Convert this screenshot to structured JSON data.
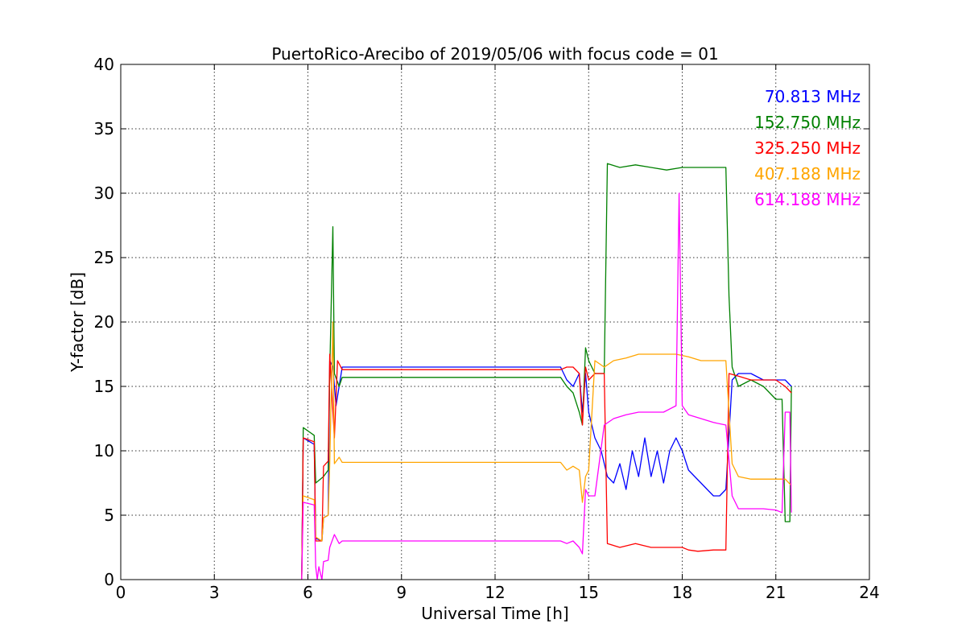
{
  "chart_data": {
    "type": "line",
    "title": "PuertoRico-Arecibo of 2019/05/06 with focus code = 01",
    "xlabel": "Universal Time [h]",
    "ylabel": "Y-factor [dB]",
    "xlim": [
      0,
      24
    ],
    "ylim": [
      0,
      40
    ],
    "xticks": [
      0,
      3,
      6,
      9,
      12,
      15,
      18,
      21,
      24
    ],
    "yticks": [
      0,
      5,
      10,
      15,
      20,
      25,
      30,
      35,
      40
    ],
    "grid": true,
    "legend_position": "top-right",
    "series": [
      {
        "name": "70.813 MHz",
        "color": "#0000ff",
        "points": [
          [
            5.8,
            0
          ],
          [
            5.85,
            11
          ],
          [
            6.2,
            10.5
          ],
          [
            6.25,
            3.2
          ],
          [
            6.45,
            3
          ],
          [
            6.5,
            4.8
          ],
          [
            6.65,
            5
          ],
          [
            6.7,
            17
          ],
          [
            6.8,
            16.5
          ],
          [
            6.9,
            13.5
          ],
          [
            7.0,
            15
          ],
          [
            7.1,
            16.5
          ],
          [
            9,
            16.5
          ],
          [
            12,
            16.5
          ],
          [
            14.1,
            16.5
          ],
          [
            14.3,
            15.5
          ],
          [
            14.5,
            15
          ],
          [
            14.7,
            16
          ],
          [
            14.8,
            13
          ],
          [
            14.9,
            16
          ],
          [
            15.0,
            13
          ],
          [
            15.2,
            11
          ],
          [
            15.4,
            10
          ],
          [
            15.6,
            8
          ],
          [
            15.8,
            7.5
          ],
          [
            16.0,
            9
          ],
          [
            16.2,
            7
          ],
          [
            16.4,
            10
          ],
          [
            16.6,
            8
          ],
          [
            16.8,
            11
          ],
          [
            17.0,
            8
          ],
          [
            17.2,
            10
          ],
          [
            17.4,
            7.5
          ],
          [
            17.6,
            10
          ],
          [
            17.8,
            11
          ],
          [
            18.0,
            10
          ],
          [
            18.2,
            8.5
          ],
          [
            18.4,
            8
          ],
          [
            18.6,
            7.5
          ],
          [
            18.8,
            7
          ],
          [
            19.0,
            6.5
          ],
          [
            19.2,
            6.5
          ],
          [
            19.4,
            7
          ],
          [
            19.6,
            15.5
          ],
          [
            19.8,
            16
          ],
          [
            20.2,
            16
          ],
          [
            20.6,
            15.5
          ],
          [
            21.0,
            15.5
          ],
          [
            21.3,
            15.5
          ],
          [
            21.5,
            15
          ]
        ]
      },
      {
        "name": "152.750 MHz",
        "color": "#008000",
        "points": [
          [
            5.8,
            0
          ],
          [
            5.85,
            11.8
          ],
          [
            6.2,
            11.2
          ],
          [
            6.25,
            7.5
          ],
          [
            6.5,
            8
          ],
          [
            6.65,
            8.5
          ],
          [
            6.7,
            16
          ],
          [
            6.8,
            27.4
          ],
          [
            6.85,
            16
          ],
          [
            7.0,
            15
          ],
          [
            7.1,
            15.7
          ],
          [
            9,
            15.7
          ],
          [
            12,
            15.7
          ],
          [
            14.1,
            15.7
          ],
          [
            14.3,
            15
          ],
          [
            14.5,
            14.5
          ],
          [
            14.7,
            13
          ],
          [
            14.8,
            12
          ],
          [
            14.9,
            18
          ],
          [
            15.0,
            17
          ],
          [
            15.2,
            16
          ],
          [
            15.5,
            16
          ],
          [
            15.6,
            32.3
          ],
          [
            16,
            32
          ],
          [
            16.5,
            32.2
          ],
          [
            17,
            32
          ],
          [
            17.5,
            31.8
          ],
          [
            18,
            32
          ],
          [
            18.5,
            32
          ],
          [
            19,
            32
          ],
          [
            19.4,
            32
          ],
          [
            19.5,
            22
          ],
          [
            19.6,
            16.5
          ],
          [
            19.8,
            15
          ],
          [
            20.2,
            15.5
          ],
          [
            20.6,
            15
          ],
          [
            21.0,
            14
          ],
          [
            21.2,
            14
          ],
          [
            21.3,
            4.5
          ],
          [
            21.45,
            4.5
          ],
          [
            21.5,
            15
          ]
        ]
      },
      {
        "name": "325.250 MHz",
        "color": "#ff0000",
        "points": [
          [
            5.8,
            0
          ],
          [
            5.85,
            11
          ],
          [
            6.2,
            10.7
          ],
          [
            6.25,
            3
          ],
          [
            6.45,
            3
          ],
          [
            6.5,
            8.8
          ],
          [
            6.65,
            9.2
          ],
          [
            6.7,
            17.5
          ],
          [
            6.85,
            11
          ],
          [
            6.95,
            17
          ],
          [
            7.1,
            16.3
          ],
          [
            9,
            16.3
          ],
          [
            12,
            16.3
          ],
          [
            14.1,
            16.3
          ],
          [
            14.3,
            16.5
          ],
          [
            14.5,
            16.5
          ],
          [
            14.7,
            16
          ],
          [
            14.8,
            12
          ],
          [
            14.9,
            16.5
          ],
          [
            15.0,
            15.5
          ],
          [
            15.2,
            16
          ],
          [
            15.5,
            16
          ],
          [
            15.6,
            2.8
          ],
          [
            16,
            2.5
          ],
          [
            16.5,
            2.8
          ],
          [
            17,
            2.5
          ],
          [
            17.5,
            2.5
          ],
          [
            17.8,
            2.5
          ],
          [
            18.0,
            2.5
          ],
          [
            18.2,
            2.3
          ],
          [
            18.5,
            2.2
          ],
          [
            19,
            2.3
          ],
          [
            19.4,
            2.3
          ],
          [
            19.5,
            16
          ],
          [
            19.8,
            15.8
          ],
          [
            20.2,
            15.5
          ],
          [
            20.6,
            15.5
          ],
          [
            21.0,
            15.5
          ],
          [
            21.3,
            15
          ],
          [
            21.5,
            14.5
          ]
        ]
      },
      {
        "name": "407.188 MHz",
        "color": "#ffa500",
        "points": [
          [
            5.8,
            0
          ],
          [
            5.85,
            6.5
          ],
          [
            6.2,
            6.2
          ],
          [
            6.25,
            3.3
          ],
          [
            6.45,
            3
          ],
          [
            6.5,
            4.8
          ],
          [
            6.65,
            5
          ],
          [
            6.7,
            9
          ],
          [
            6.8,
            20
          ],
          [
            6.85,
            9
          ],
          [
            7.0,
            9.5
          ],
          [
            7.1,
            9.1
          ],
          [
            9,
            9.1
          ],
          [
            12,
            9.1
          ],
          [
            14.1,
            9.1
          ],
          [
            14.3,
            8.5
          ],
          [
            14.5,
            8.8
          ],
          [
            14.7,
            8.5
          ],
          [
            14.8,
            6
          ],
          [
            14.9,
            8
          ],
          [
            15.0,
            8.5
          ],
          [
            15.2,
            17
          ],
          [
            15.5,
            16.5
          ],
          [
            15.8,
            17
          ],
          [
            16.2,
            17.2
          ],
          [
            16.6,
            17.5
          ],
          [
            17.0,
            17.5
          ],
          [
            17.4,
            17.5
          ],
          [
            17.8,
            17.5
          ],
          [
            18.2,
            17.3
          ],
          [
            18.6,
            17
          ],
          [
            19.0,
            17
          ],
          [
            19.4,
            17
          ],
          [
            19.6,
            9
          ],
          [
            19.8,
            8
          ],
          [
            20.2,
            7.8
          ],
          [
            20.6,
            7.8
          ],
          [
            21.0,
            7.8
          ],
          [
            21.3,
            7.8
          ],
          [
            21.5,
            7.3
          ]
        ]
      },
      {
        "name": "614.188 MHz",
        "color": "#ff00ff",
        "points": [
          [
            5.8,
            0
          ],
          [
            5.85,
            6
          ],
          [
            6.2,
            5.8
          ],
          [
            6.25,
            1
          ],
          [
            6.3,
            0
          ],
          [
            6.35,
            1
          ],
          [
            6.45,
            0
          ],
          [
            6.5,
            1.4
          ],
          [
            6.65,
            1.5
          ],
          [
            6.7,
            2.5
          ],
          [
            6.85,
            3.5
          ],
          [
            7.0,
            2.8
          ],
          [
            7.1,
            3
          ],
          [
            9,
            3
          ],
          [
            12,
            3
          ],
          [
            14.1,
            3
          ],
          [
            14.3,
            2.8
          ],
          [
            14.5,
            3
          ],
          [
            14.7,
            2.5
          ],
          [
            14.8,
            2
          ],
          [
            14.9,
            7
          ],
          [
            15.0,
            6.5
          ],
          [
            15.2,
            6.5
          ],
          [
            15.5,
            12
          ],
          [
            15.8,
            12.5
          ],
          [
            16.2,
            12.8
          ],
          [
            16.6,
            13
          ],
          [
            17.0,
            13
          ],
          [
            17.4,
            13
          ],
          [
            17.8,
            13.5
          ],
          [
            17.9,
            30
          ],
          [
            18.0,
            13.5
          ],
          [
            18.2,
            12.8
          ],
          [
            18.6,
            12.5
          ],
          [
            19.0,
            12.2
          ],
          [
            19.4,
            12
          ],
          [
            19.6,
            6.5
          ],
          [
            19.8,
            5.5
          ],
          [
            20.2,
            5.5
          ],
          [
            20.6,
            5.5
          ],
          [
            21.0,
            5.4
          ],
          [
            21.2,
            5.2
          ],
          [
            21.3,
            13
          ],
          [
            21.45,
            13
          ],
          [
            21.5,
            5.2
          ]
        ]
      }
    ]
  }
}
